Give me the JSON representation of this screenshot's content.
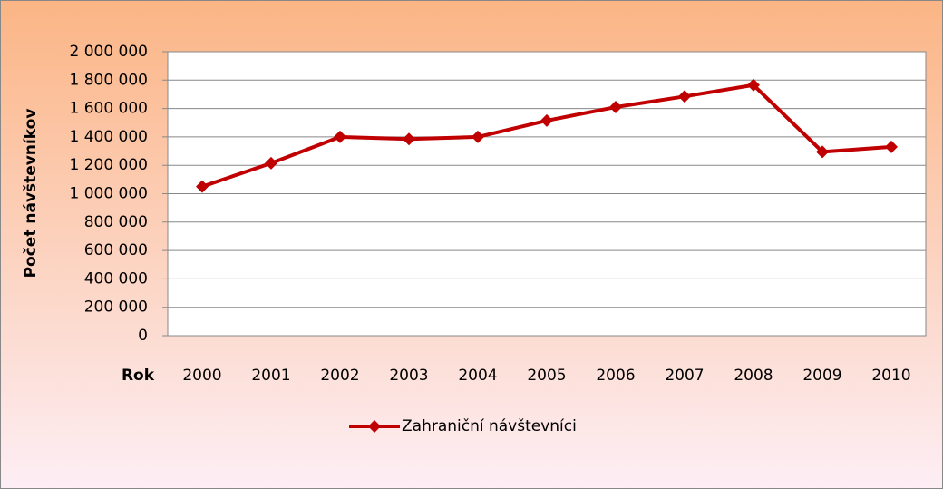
{
  "chart_data": {
    "type": "line",
    "y_label": "Počet návštevníkov",
    "x_label": "Rok",
    "categories": [
      "2000",
      "2001",
      "2002",
      "2003",
      "2004",
      "2005",
      "2006",
      "2007",
      "2008",
      "2009",
      "2010"
    ],
    "series": [
      {
        "name": "Zahraniční návštevníci",
        "color": "#c00000",
        "values": [
          1050000,
          1215000,
          1400000,
          1385000,
          1400000,
          1515000,
          1610000,
          1685000,
          1765000,
          1295000,
          1330000
        ]
      }
    ],
    "ylim": [
      0,
      2000000
    ],
    "yticks": [
      0,
      {
        "value": 200000,
        "label": "200 000"
      },
      {
        "value": 400000,
        "label": "400 000"
      },
      {
        "value": 600000,
        "label": "600 000"
      },
      {
        "value": 800000,
        "label": "800 000"
      },
      {
        "value": 1000000,
        "label": "1 000 000"
      },
      {
        "value": 1200000,
        "label": "1 200 000"
      },
      {
        "value": 1400000,
        "label": "1 400 000"
      },
      {
        "value": 1600000,
        "label": "1 600 000"
      },
      {
        "value": 1800000,
        "label": "1 800 000"
      },
      {
        "value": 2000000,
        "label": "2 000 000"
      }
    ],
    "grid": true,
    "legend": "bottom"
  }
}
